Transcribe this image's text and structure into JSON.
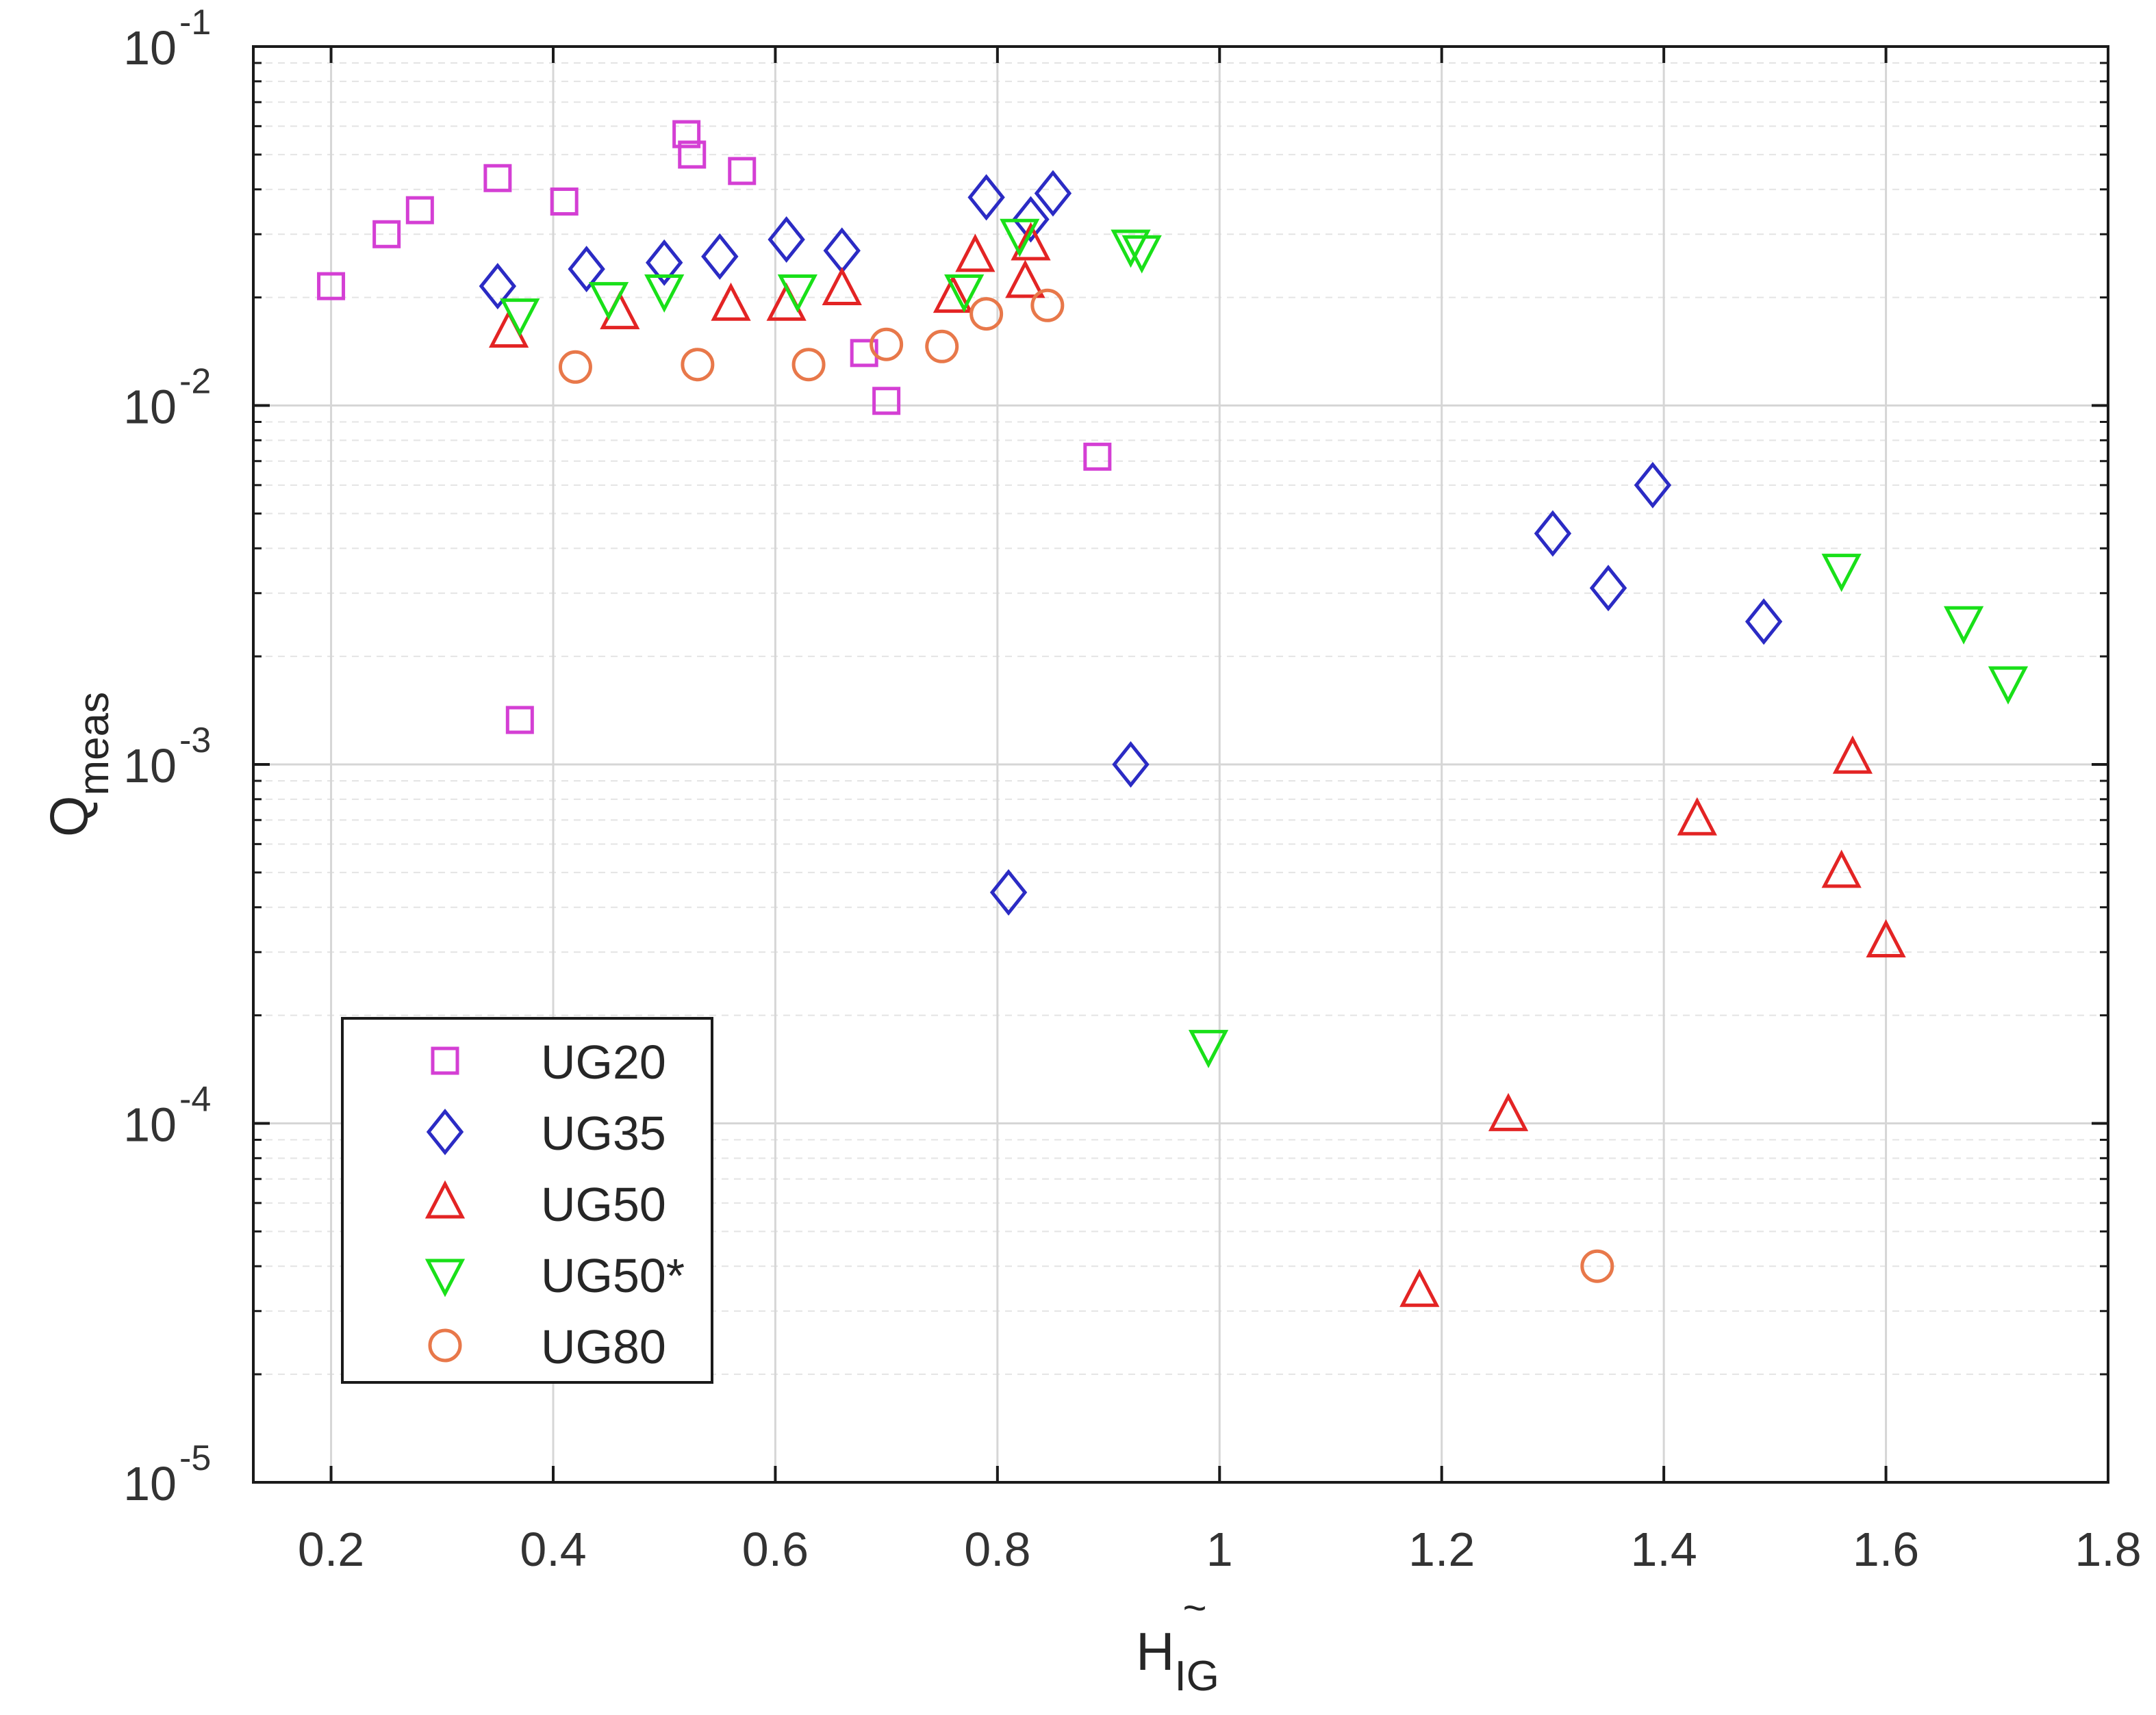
{
  "chart_data": {
    "type": "scatter",
    "title": "",
    "xlabel": {
      "base": "H",
      "tilde": "~",
      "subscript": "IG"
    },
    "ylabel": {
      "base": "Q",
      "subscript": "meas"
    },
    "xscale": "linear",
    "yscale": "log",
    "xlim": [
      0.13,
      1.8
    ],
    "ylim": [
      1e-05,
      0.1
    ],
    "grid": true,
    "x_ticks": [
      {
        "value": 0.2,
        "label": "0.2"
      },
      {
        "value": 0.4,
        "label": "0.4"
      },
      {
        "value": 0.6,
        "label": "0.6"
      },
      {
        "value": 0.8,
        "label": "0.8"
      },
      {
        "value": 1.0,
        "label": "1"
      },
      {
        "value": 1.2,
        "label": "1.2"
      },
      {
        "value": 1.4,
        "label": "1.4"
      },
      {
        "value": 1.6,
        "label": "1.6"
      },
      {
        "value": 1.8,
        "label": "1.8"
      }
    ],
    "y_ticks": [
      {
        "value": 0.1,
        "base": "10",
        "exp": "-1"
      },
      {
        "value": 0.01,
        "base": "10",
        "exp": "-2"
      },
      {
        "value": 0.001,
        "base": "10",
        "exp": "-3"
      },
      {
        "value": 0.0001,
        "base": "10",
        "exp": "-4"
      },
      {
        "value": 1e-05,
        "base": "10",
        "exp": "-5"
      }
    ],
    "legend_position": "bottom-left",
    "series": [
      {
        "name": "UG20",
        "marker": "square",
        "color": "#d43fd4",
        "points": [
          [
            0.2,
            0.0215
          ],
          [
            0.25,
            0.03
          ],
          [
            0.28,
            0.035
          ],
          [
            0.35,
            0.043
          ],
          [
            0.37,
            0.00133
          ],
          [
            0.41,
            0.037
          ],
          [
            0.52,
            0.057
          ],
          [
            0.525,
            0.05
          ],
          [
            0.57,
            0.045
          ],
          [
            0.68,
            0.014
          ],
          [
            0.7,
            0.0103
          ],
          [
            0.89,
            0.0072
          ]
        ]
      },
      {
        "name": "UG35",
        "marker": "diamond",
        "color": "#2b2bc4",
        "points": [
          [
            0.35,
            0.0215
          ],
          [
            0.43,
            0.024
          ],
          [
            0.5,
            0.025
          ],
          [
            0.55,
            0.026
          ],
          [
            0.61,
            0.029
          ],
          [
            0.66,
            0.027
          ],
          [
            0.79,
            0.038
          ],
          [
            0.81,
            0.00044
          ],
          [
            0.83,
            0.033
          ],
          [
            0.85,
            0.039
          ],
          [
            0.92,
            0.001
          ],
          [
            1.3,
            0.0044
          ],
          [
            1.35,
            0.0031
          ],
          [
            1.39,
            0.006
          ],
          [
            1.49,
            0.0025
          ]
        ]
      },
      {
        "name": "UG50",
        "marker": "triangle-up",
        "color": "#e32424",
        "points": [
          [
            0.36,
            0.016
          ],
          [
            0.46,
            0.018
          ],
          [
            0.56,
            0.019
          ],
          [
            0.61,
            0.019
          ],
          [
            0.66,
            0.021
          ],
          [
            0.76,
            0.02
          ],
          [
            0.78,
            0.026
          ],
          [
            0.825,
            0.022
          ],
          [
            0.83,
            0.028
          ],
          [
            1.18,
            3.4e-05
          ],
          [
            1.26,
            0.000105
          ],
          [
            1.43,
            0.0007
          ],
          [
            1.56,
            0.0005
          ],
          [
            1.57,
            0.00104
          ],
          [
            1.6,
            0.00032
          ]
        ]
      },
      {
        "name": "UG50*",
        "marker": "triangle-down",
        "color": "#19e019",
        "points": [
          [
            0.37,
            0.018
          ],
          [
            0.45,
            0.02
          ],
          [
            0.5,
            0.021
          ],
          [
            0.62,
            0.021
          ],
          [
            0.77,
            0.021
          ],
          [
            0.82,
            0.03
          ],
          [
            0.92,
            0.028
          ],
          [
            0.93,
            0.027
          ],
          [
            0.99,
            0.000165
          ],
          [
            1.56,
            0.0035
          ],
          [
            1.67,
            0.0025
          ],
          [
            1.71,
            0.0017
          ]
        ]
      },
      {
        "name": "UG80",
        "marker": "circle",
        "color": "#e8784a",
        "points": [
          [
            0.42,
            0.0128
          ],
          [
            0.53,
            0.013
          ],
          [
            0.63,
            0.013
          ],
          [
            0.7,
            0.0148
          ],
          [
            0.75,
            0.0146
          ],
          [
            0.79,
            0.018
          ],
          [
            0.845,
            0.019
          ],
          [
            1.34,
            4e-05
          ]
        ]
      }
    ]
  }
}
